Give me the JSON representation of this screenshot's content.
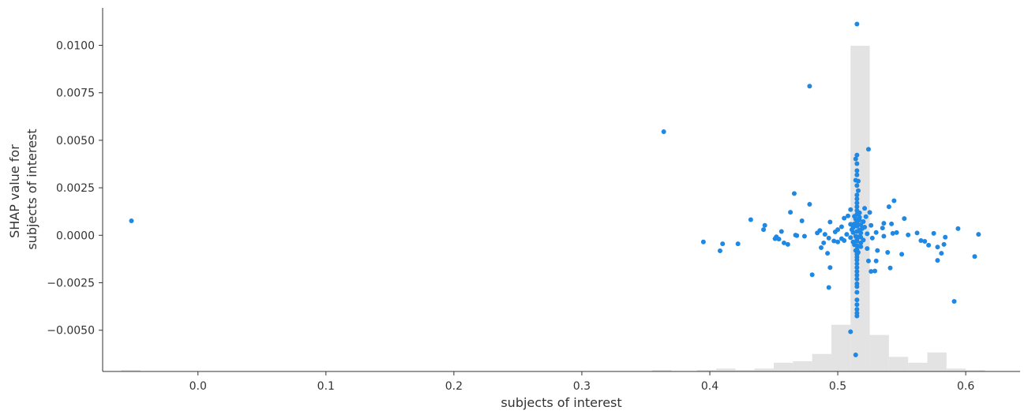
{
  "chart_data": {
    "type": "scatter",
    "xlabel": "subjects of interest",
    "ylabel_lines": [
      "SHAP value for",
      "subjects of interest"
    ],
    "xlim": [
      -0.0745,
      0.6425
    ],
    "ylim": [
      -0.00717,
      0.01197
    ],
    "x_ticks": [
      0.0,
      0.1,
      0.2,
      0.3,
      0.4,
      0.5,
      0.6
    ],
    "x_tick_labels": [
      "0.0",
      "0.1",
      "0.2",
      "0.3",
      "0.4",
      "0.5",
      "0.6"
    ],
    "y_ticks": [
      -0.005,
      -0.0025,
      0.0,
      0.0025,
      0.005,
      0.0075,
      0.01
    ],
    "y_tick_labels": [
      "−0.0050",
      "−0.0025",
      "0.0000",
      "0.0025",
      "0.0050",
      "0.0075",
      "0.0100"
    ],
    "grid": false,
    "colors": {
      "points": "#1e88e5",
      "histogram": "#e3e3e3",
      "axis": "#333333"
    },
    "histogram": {
      "bins": [
        {
          "x0": -0.06,
          "x1": -0.045,
          "count": 1
        },
        {
          "x0": 0.355,
          "x1": 0.37,
          "count": 1
        },
        {
          "x0": 0.39,
          "x1": 0.405,
          "count": 1
        },
        {
          "x0": 0.405,
          "x1": 0.42,
          "count": 2
        },
        {
          "x0": 0.42,
          "x1": 0.435,
          "count": 1
        },
        {
          "x0": 0.435,
          "x1": 0.45,
          "count": 2
        },
        {
          "x0": 0.45,
          "x1": 0.465,
          "count": 6
        },
        {
          "x0": 0.465,
          "x1": 0.48,
          "count": 7
        },
        {
          "x0": 0.48,
          "x1": 0.495,
          "count": 12
        },
        {
          "x0": 0.495,
          "x1": 0.51,
          "count": 32
        },
        {
          "x0": 0.51,
          "x1": 0.525,
          "count": 223
        },
        {
          "x0": 0.525,
          "x1": 0.54,
          "count": 25
        },
        {
          "x0": 0.54,
          "x1": 0.555,
          "count": 10
        },
        {
          "x0": 0.555,
          "x1": 0.57,
          "count": 6
        },
        {
          "x0": 0.57,
          "x1": 0.585,
          "count": 13
        },
        {
          "x0": 0.585,
          "x1": 0.6,
          "count": 2
        },
        {
          "x0": 0.6,
          "x1": 0.615,
          "count": 1
        }
      ],
      "max_count": 223
    },
    "points": [
      [
        -0.052,
        0.00076
      ],
      [
        0.364,
        0.00545
      ],
      [
        0.478,
        0.00785
      ],
      [
        0.515,
        0.01112
      ],
      [
        0.524,
        0.00453
      ],
      [
        0.515,
        0.00422
      ],
      [
        0.514,
        0.00402
      ],
      [
        0.515,
        0.00377
      ],
      [
        0.515,
        0.0034
      ],
      [
        0.515,
        0.00318
      ],
      [
        0.514,
        0.0029
      ],
      [
        0.516,
        0.00285
      ],
      [
        0.515,
        0.00262
      ],
      [
        0.516,
        0.00235
      ],
      [
        0.515,
        0.00212
      ],
      [
        0.466,
        0.0022
      ],
      [
        0.544,
        0.00182
      ],
      [
        0.515,
        0.00191
      ],
      [
        0.478,
        0.00163
      ],
      [
        0.54,
        0.0015
      ],
      [
        0.515,
        0.0017
      ],
      [
        0.515,
        0.0015
      ],
      [
        0.463,
        0.00121
      ],
      [
        0.515,
        0.0013
      ],
      [
        0.521,
        0.00142
      ],
      [
        0.51,
        0.00135
      ],
      [
        0.525,
        0.0012
      ],
      [
        0.515,
        0.0011
      ],
      [
        0.508,
        0.00102
      ],
      [
        0.522,
        0.00098
      ],
      [
        0.517,
        0.00095
      ],
      [
        0.552,
        0.00088
      ],
      [
        0.432,
        0.00082
      ],
      [
        0.505,
        0.0009
      ],
      [
        0.514,
        0.00085
      ],
      [
        0.472,
        0.00076
      ],
      [
        0.494,
        0.0007
      ],
      [
        0.52,
        0.00072
      ],
      [
        0.515,
        0.00068
      ],
      [
        0.536,
        0.00063
      ],
      [
        0.542,
        0.0006
      ],
      [
        0.443,
        0.00052
      ],
      [
        0.51,
        0.00058
      ],
      [
        0.518,
        0.00055
      ],
      [
        0.526,
        0.00052
      ],
      [
        0.515,
        0.00048
      ],
      [
        0.503,
        0.00045
      ],
      [
        0.521,
        0.00043
      ],
      [
        0.512,
        0.0004
      ],
      [
        0.535,
        0.00038
      ],
      [
        0.594,
        0.00035
      ],
      [
        0.442,
        0.0003
      ],
      [
        0.5,
        0.0003
      ],
      [
        0.486,
        0.00025
      ],
      [
        0.517,
        0.00028
      ],
      [
        0.456,
        0.0002
      ],
      [
        0.498,
        0.00018
      ],
      [
        0.53,
        0.00015
      ],
      [
        0.546,
        0.00014
      ],
      [
        0.562,
        0.00012
      ],
      [
        0.575,
        0.0001
      ],
      [
        0.61,
        5e-05
      ],
      [
        0.484,
        0.00012
      ],
      [
        0.49,
        5e-05
      ],
      [
        0.507,
        5e-05
      ],
      [
        0.523,
        8e-05
      ],
      [
        0.543,
        0.0001
      ],
      [
        0.536,
        -5e-05
      ],
      [
        0.555,
        2e-05
      ],
      [
        0.468,
        -2e-05
      ],
      [
        0.474,
        -5e-05
      ],
      [
        0.467,
        1e-05
      ],
      [
        0.452,
        -8e-05
      ],
      [
        0.451,
        -0.00018
      ],
      [
        0.454,
        -0.0002
      ],
      [
        0.493,
        -0.00015
      ],
      [
        0.503,
        -0.00018
      ],
      [
        0.51,
        -0.00012
      ],
      [
        0.518,
        -0.0001
      ],
      [
        0.527,
        -0.00015
      ],
      [
        0.515,
        -0.0002
      ],
      [
        0.497,
        -0.0003
      ],
      [
        0.5,
        -0.00035
      ],
      [
        0.505,
        -0.00028
      ],
      [
        0.52,
        -0.00025
      ],
      [
        0.489,
        -0.0004
      ],
      [
        0.458,
        -0.0004
      ],
      [
        0.461,
        -0.00048
      ],
      [
        0.395,
        -0.00035
      ],
      [
        0.41,
        -0.00045
      ],
      [
        0.422,
        -0.00045
      ],
      [
        0.565,
        -0.00028
      ],
      [
        0.568,
        -0.00032
      ],
      [
        0.571,
        -0.00052
      ],
      [
        0.584,
        -0.0001
      ],
      [
        0.583,
        -0.00048
      ],
      [
        0.578,
        -0.00062
      ],
      [
        0.487,
        -0.00065
      ],
      [
        0.513,
        -0.0005
      ],
      [
        0.518,
        -0.0006
      ],
      [
        0.523,
        -0.0007
      ],
      [
        0.531,
        -0.0008
      ],
      [
        0.408,
        -0.00082
      ],
      [
        0.492,
        -0.00095
      ],
      [
        0.539,
        -0.0009
      ],
      [
        0.55,
        -0.001
      ],
      [
        0.581,
        -0.00095
      ],
      [
        0.515,
        -0.001
      ],
      [
        0.515,
        -0.00115
      ],
      [
        0.515,
        -0.0013
      ],
      [
        0.524,
        -0.00135
      ],
      [
        0.53,
        -0.00135
      ],
      [
        0.607,
        -0.00112
      ],
      [
        0.578,
        -0.00132
      ],
      [
        0.494,
        -0.0017
      ],
      [
        0.541,
        -0.00172
      ],
      [
        0.515,
        -0.0015
      ],
      [
        0.515,
        -0.0017
      ],
      [
        0.515,
        -0.0019
      ],
      [
        0.526,
        -0.0019
      ],
      [
        0.529,
        -0.00188
      ],
      [
        0.48,
        -0.00208
      ],
      [
        0.515,
        -0.0021
      ],
      [
        0.515,
        -0.0023
      ],
      [
        0.493,
        -0.00275
      ],
      [
        0.515,
        -0.00255
      ],
      [
        0.515,
        -0.0027
      ],
      [
        0.515,
        -0.003
      ],
      [
        0.515,
        -0.0034
      ],
      [
        0.591,
        -0.00348
      ],
      [
        0.515,
        -0.00365
      ],
      [
        0.515,
        -0.0039
      ],
      [
        0.515,
        -0.0041
      ],
      [
        0.515,
        -0.00425
      ],
      [
        0.51,
        -0.00508
      ],
      [
        0.514,
        -0.0063
      ],
      [
        0.512,
        0.00015
      ],
      [
        0.518,
        0.00012
      ],
      [
        0.514,
        -5e-05
      ],
      [
        0.516,
        -8e-05
      ],
      [
        0.511,
        0.0003
      ],
      [
        0.519,
        0.00035
      ],
      [
        0.513,
        0.0006
      ],
      [
        0.517,
        0.0008
      ],
      [
        0.512,
        -0.00035
      ],
      [
        0.518,
        -0.0004
      ],
      [
        0.514,
        -0.0008
      ],
      [
        0.516,
        -0.0009
      ],
      [
        0.513,
        0.001
      ],
      [
        0.517,
        0.00118
      ],
      [
        0.515,
        0.0006
      ],
      [
        0.515,
        0.0002
      ],
      [
        0.515,
        -0.0003
      ],
      [
        0.515,
        -0.00055
      ],
      [
        0.515,
        -0.00075
      ]
    ]
  }
}
